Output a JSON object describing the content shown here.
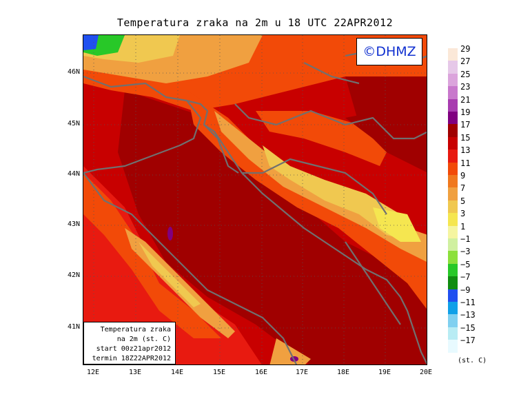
{
  "title": "Temperatura zraka na 2m u 18 UTC 22APR2012",
  "logo": "©DHMZ",
  "infobox": {
    "line1": "Temperatura zraka",
    "line2": "na 2m (st. C)",
    "line3": "start 00z21apr2012",
    "line4": "termin 18Z22APR2012"
  },
  "lat_labels": [
    "46N",
    "45N",
    "44N",
    "43N",
    "42N",
    "41N"
  ],
  "lon_labels": [
    "12E",
    "13E",
    "14E",
    "15E",
    "16E",
    "17E",
    "18E",
    "19E",
    "20E"
  ],
  "legend": {
    "labels": [
      "29",
      "27",
      "25",
      "23",
      "21",
      "19",
      "17",
      "15",
      "13",
      "11",
      "9",
      "7",
      "5",
      "3",
      "1",
      "−1",
      "−3",
      "−5",
      "−7",
      "−9",
      "−11",
      "−13",
      "−15",
      "−17"
    ],
    "colors": [
      "#fbe8d8",
      "#e6c8e8",
      "#dba4dc",
      "#c878cc",
      "#a83cb0",
      "#800080",
      "#a00000",
      "#c80000",
      "#e81a10",
      "#f24a08",
      "#f0781e",
      "#f0a040",
      "#f0c850",
      "#f5e650",
      "#f5f5a0",
      "#d0f0a0",
      "#8ce03c",
      "#28c828",
      "#108c10",
      "#2050f0",
      "#10a0e8",
      "#80d0f0",
      "#b8ecf4",
      "#e8faff"
    ],
    "units": "(st. C)"
  },
  "colors": {
    "hot": "#a00000",
    "warm": "#c80000",
    "mild": "#e81a10",
    "orange": "#f24a08",
    "lightorange": "#f0781e",
    "tan": "#f0a040",
    "yellow": "#f0c850",
    "paleyellow": "#f5e650",
    "green": "#28c828",
    "coast": "#707070",
    "logo_text": "#1030d0"
  }
}
